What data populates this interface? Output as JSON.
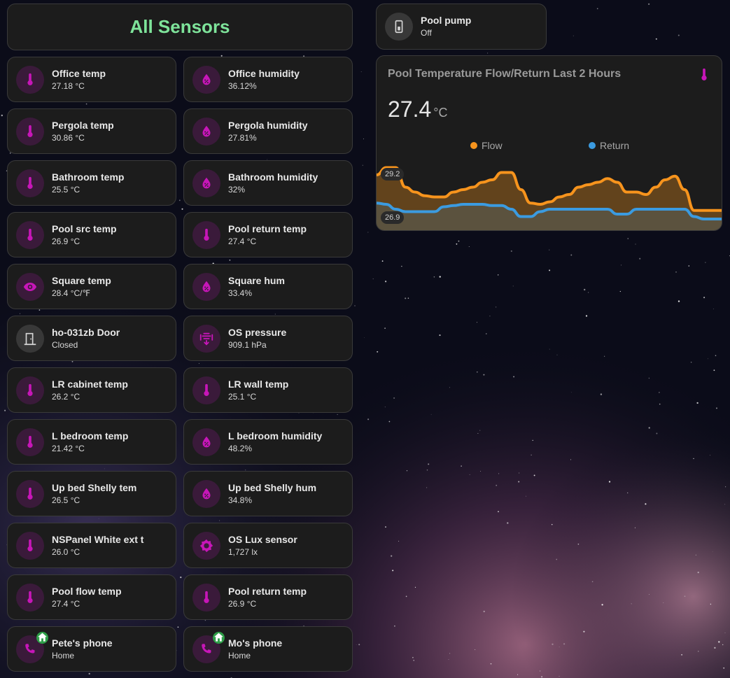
{
  "header": {
    "title": "All Sensors"
  },
  "tiles": [
    {
      "name": "Office temp",
      "state": "27.18 °C",
      "icon": "thermometer-icon"
    },
    {
      "name": "Office humidity",
      "state": "36.12%",
      "icon": "water-percent-icon"
    },
    {
      "name": "Pergola temp",
      "state": "30.86 °C",
      "icon": "thermometer-icon"
    },
    {
      "name": "Pergola humidity",
      "state": "27.81%",
      "icon": "water-percent-icon"
    },
    {
      "name": "Bathroom temp",
      "state": "25.5 °C",
      "icon": "thermometer-icon"
    },
    {
      "name": "Bathroom humidity",
      "state": "32%",
      "icon": "water-percent-icon"
    },
    {
      "name": "Pool src temp",
      "state": "26.9 °C",
      "icon": "thermometer-icon"
    },
    {
      "name": "Pool return temp",
      "state": "27.4 °C",
      "icon": "thermometer-icon"
    },
    {
      "name": "Square temp",
      "state": "28.4 °C/℉",
      "icon": "eye-icon"
    },
    {
      "name": "Square hum",
      "state": "33.4%",
      "icon": "water-percent-icon"
    },
    {
      "name": "ho-031zb Door",
      "state": "Closed",
      "icon": "door-closed-icon"
    },
    {
      "name": "OS pressure",
      "state": "909.1 hPa",
      "icon": "gauge-pressure-icon"
    },
    {
      "name": "LR cabinet temp",
      "state": "26.2 °C",
      "icon": "thermometer-icon"
    },
    {
      "name": "LR wall temp",
      "state": "25.1 °C",
      "icon": "thermometer-icon"
    },
    {
      "name": "L bedroom temp",
      "state": "21.42 °C",
      "icon": "thermometer-icon"
    },
    {
      "name": "L bedroom humidity",
      "state": "48.2%",
      "icon": "water-percent-icon"
    },
    {
      "name": "Up bed Shelly tem",
      "state": "26.5 °C",
      "icon": "thermometer-icon"
    },
    {
      "name": "Up bed Shelly hum",
      "state": "34.8%",
      "icon": "water-percent-icon"
    },
    {
      "name": "NSPanel White ext t",
      "state": "26.0 °C",
      "icon": "thermometer-icon"
    },
    {
      "name": "OS Lux sensor",
      "state": "1,727 lx",
      "icon": "brightness-icon"
    },
    {
      "name": "Pool flow temp",
      "state": "27.4 °C",
      "icon": "thermometer-icon"
    },
    {
      "name": "Pool return temp",
      "state": "26.9 °C",
      "icon": "thermometer-icon"
    },
    {
      "name": "Pete's phone",
      "state": "Home",
      "icon": "phone-icon"
    },
    {
      "name": "Mo's phone",
      "state": "Home",
      "icon": "phone-icon"
    }
  ],
  "pump": {
    "name": "Pool pump",
    "state": "Off",
    "icon": "pool-pump-icon"
  },
  "graph": {
    "title": "Pool Temperature Flow/Return Last 2 Hours",
    "icon": "thermometer-icon",
    "value": "27.4",
    "unit": "°C",
    "max_label": "29.2",
    "min_label": "26.9",
    "colors": {
      "accent": "#c716b8",
      "flow": "#f7941d",
      "return": "#3b9be0",
      "title_green": "#7ee39a",
      "home_badge": "#2e9e48"
    }
  },
  "chart_data": {
    "type": "line",
    "ylim": [
      26.7,
      29.3
    ],
    "series": [
      {
        "name": "Flow",
        "color": "#f7941d",
        "values": [
          28.9,
          29.2,
          29.2,
          28.4,
          28.2,
          28.05,
          28.0,
          28.0,
          28.2,
          28.3,
          28.4,
          28.6,
          28.7,
          29.0,
          29.0,
          28.3,
          27.75,
          27.7,
          27.8,
          28.0,
          28.1,
          28.4,
          28.5,
          28.6,
          28.75,
          28.6,
          28.2,
          28.2,
          28.1,
          28.4,
          28.7,
          28.85,
          28.3,
          27.45,
          27.45,
          27.45,
          27.45
        ]
      },
      {
        "name": "Return",
        "color": "#3b9be0",
        "values": [
          27.75,
          27.7,
          27.5,
          27.4,
          27.4,
          27.4,
          27.4,
          27.6,
          27.65,
          27.7,
          27.7,
          27.7,
          27.65,
          27.65,
          27.5,
          27.2,
          27.2,
          27.4,
          27.5,
          27.5,
          27.5,
          27.5,
          27.5,
          27.5,
          27.5,
          27.3,
          27.3,
          27.5,
          27.5,
          27.5,
          27.5,
          27.5,
          27.5,
          27.2,
          27.1,
          27.1,
          27.1
        ]
      }
    ]
  }
}
